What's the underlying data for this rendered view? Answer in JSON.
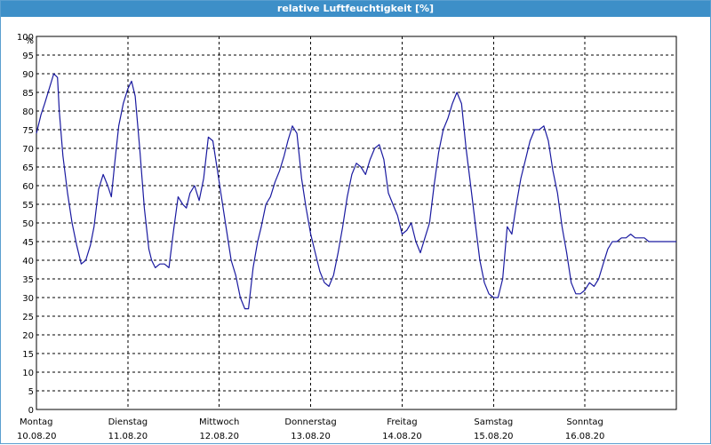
{
  "window": {
    "title": "relative Luftfeuchtigkeit [%]"
  },
  "colors": {
    "title_bar": "#3d8fc8",
    "series": "#1a1aa0",
    "grid": "#000000"
  },
  "chart_data": {
    "type": "line",
    "title": "relative Luftfeuchtigkeit [%]",
    "ylabel": "%",
    "ylim": [
      0,
      100
    ],
    "yticks": [
      0,
      5,
      10,
      15,
      20,
      25,
      30,
      35,
      40,
      45,
      50,
      55,
      60,
      65,
      70,
      75,
      80,
      85,
      90,
      95,
      100
    ],
    "xlim": [
      0,
      7
    ],
    "grid": true,
    "x_tick_labels": [
      {
        "day": "Montag",
        "date": "10.08.20"
      },
      {
        "day": "Dienstag",
        "date": "11.08.20"
      },
      {
        "day": "Mittwoch",
        "date": "12.08.20"
      },
      {
        "day": "Donnerstag",
        "date": "13.08.20"
      },
      {
        "day": "Freitag",
        "date": "14.08.20"
      },
      {
        "day": "Samstag",
        "date": "15.08.20"
      },
      {
        "day": "Sonntag",
        "date": "16.08.20"
      }
    ],
    "series": [
      {
        "x": [
          0.0,
          0.05,
          0.09,
          0.14,
          0.19,
          0.23,
          0.25,
          0.29,
          0.34,
          0.39,
          0.44,
          0.49,
          0.54,
          0.59,
          0.63,
          0.68,
          0.73,
          0.78,
          0.82,
          0.86,
          0.9,
          0.95,
          1.0,
          1.04,
          1.08,
          1.13,
          1.18,
          1.23,
          1.26,
          1.3,
          1.35,
          1.4,
          1.45,
          1.5,
          1.55,
          1.6,
          1.64,
          1.68,
          1.73,
          1.78,
          1.83,
          1.88,
          1.93,
          1.98,
          2.03,
          2.08,
          2.13,
          2.18,
          2.23,
          2.28,
          2.32,
          2.37,
          2.42,
          2.46,
          2.51,
          2.56,
          2.61,
          2.66,
          2.71,
          2.75,
          2.8,
          2.85,
          2.9,
          2.95,
          3.0,
          3.05,
          3.1,
          3.15,
          3.2,
          3.25,
          3.3,
          3.35,
          3.4,
          3.45,
          3.5,
          3.55,
          3.6,
          3.65,
          3.7,
          3.75,
          3.8,
          3.85,
          3.9,
          3.95,
          4.0,
          4.05,
          4.1,
          4.15,
          4.2,
          4.25,
          4.3,
          4.35,
          4.4,
          4.45,
          4.5,
          4.55,
          4.6,
          4.65,
          4.7,
          4.75,
          4.8,
          4.85,
          4.9,
          4.95,
          5.0,
          5.05,
          5.1,
          5.15,
          5.2,
          5.25,
          5.3,
          5.35,
          5.4,
          5.45,
          5.5,
          5.55,
          5.6,
          5.65,
          5.7,
          5.75,
          5.8,
          5.85,
          5.9,
          5.95,
          6.0,
          6.05,
          6.1,
          6.15,
          6.2,
          6.25,
          6.3,
          6.35,
          6.4,
          6.45,
          6.5,
          6.55,
          6.6,
          6.65,
          6.7,
          6.75,
          6.8,
          6.85,
          6.9,
          6.95,
          7.0
        ],
        "y": [
          74,
          79,
          82,
          86,
          90,
          89,
          80,
          68,
          58,
          50,
          44,
          39,
          40,
          44,
          49,
          59,
          63,
          60,
          57,
          67,
          76,
          82,
          86,
          88,
          84,
          70,
          54,
          43,
          40,
          38,
          39,
          39,
          38,
          48,
          57,
          55,
          54,
          58,
          60,
          56,
          62,
          73,
          72,
          64,
          56,
          48,
          40,
          36,
          30,
          27,
          27,
          38,
          45,
          49,
          55,
          57,
          61,
          64,
          68,
          72,
          76,
          74,
          62,
          54,
          47,
          42,
          37,
          34,
          33,
          36,
          42,
          49,
          57,
          63,
          66,
          65,
          63,
          67,
          70,
          71,
          67,
          58,
          55,
          52,
          47,
          48,
          50,
          45,
          42,
          46,
          50,
          60,
          69,
          75,
          78,
          82,
          85,
          82,
          70,
          60,
          50,
          40,
          34,
          31,
          30,
          30,
          35,
          49,
          47,
          55,
          62,
          67,
          72,
          75,
          75,
          76,
          72,
          64,
          58,
          49,
          42,
          34,
          31,
          31,
          32,
          34,
          33,
          35,
          39,
          43,
          45,
          45,
          46,
          46,
          47,
          46,
          46,
          46,
          45,
          45,
          45,
          45,
          45,
          45,
          45
        ]
      }
    ]
  }
}
